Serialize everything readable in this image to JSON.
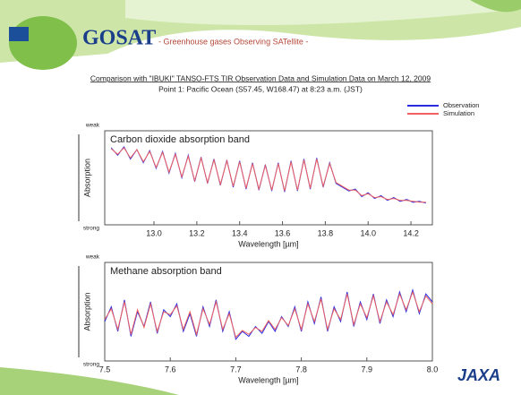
{
  "header": {
    "logo": "GOSAT",
    "tagline": "- Greenhouse gases Observing SATellite -",
    "title": "Comparison with \"IBUKI\" TANSO-FTS TIR Observation Data and Simulation Data on March 12, 2009",
    "subtitle": "Point 1: Pacific Ocean (S57.45, W168.47) at 8:23 a.m. (JST)"
  },
  "footer": {
    "logo": "JAXA"
  },
  "chart_data": [
    {
      "type": "line",
      "annotation": "Carbon dioxide absorption band",
      "x_label": "Wavelength [µm]",
      "y_label": "Absorption",
      "xlim": [
        12.77,
        14.3
      ],
      "xticks": [
        {
          "value": 13,
          "label": "13.0"
        },
        13.2,
        13.4,
        13.6,
        13.8,
        {
          "value": 14,
          "label": "14.0"
        },
        14.2
      ],
      "ylim": [
        0,
        1
      ],
      "yticks": [
        {
          "value": 0,
          "label": "strong"
        },
        {
          "value": 1,
          "label": "weak"
        }
      ],
      "x": [
        12.8,
        12.83,
        12.86,
        12.89,
        12.92,
        12.95,
        12.98,
        13.01,
        13.04,
        13.07,
        13.1,
        13.13,
        13.16,
        13.19,
        13.22,
        13.25,
        13.28,
        13.31,
        13.34,
        13.37,
        13.4,
        13.43,
        13.46,
        13.49,
        13.52,
        13.55,
        13.58,
        13.61,
        13.64,
        13.67,
        13.7,
        13.73,
        13.76,
        13.79,
        13.82,
        13.85,
        13.88,
        13.91,
        13.94,
        13.97,
        14.0,
        14.03,
        14.06,
        14.09,
        14.12,
        14.15,
        14.18,
        14.21,
        14.24,
        14.27
      ],
      "series": [
        {
          "name": "Observation",
          "color": "#2a2ae0",
          "values": [
            0.82,
            0.74,
            0.83,
            0.7,
            0.8,
            0.66,
            0.79,
            0.6,
            0.78,
            0.55,
            0.76,
            0.5,
            0.74,
            0.46,
            0.72,
            0.44,
            0.7,
            0.42,
            0.69,
            0.4,
            0.68,
            0.38,
            0.66,
            0.37,
            0.64,
            0.36,
            0.66,
            0.35,
            0.68,
            0.36,
            0.7,
            0.38,
            0.71,
            0.4,
            0.66,
            0.44,
            0.4,
            0.36,
            0.38,
            0.3,
            0.34,
            0.28,
            0.31,
            0.26,
            0.29,
            0.25,
            0.27,
            0.24,
            0.25,
            0.23
          ]
        },
        {
          "name": "Simulation",
          "color": "#f06060",
          "values": [
            0.81,
            0.75,
            0.82,
            0.71,
            0.8,
            0.67,
            0.78,
            0.61,
            0.77,
            0.56,
            0.75,
            0.51,
            0.73,
            0.47,
            0.71,
            0.45,
            0.69,
            0.43,
            0.68,
            0.41,
            0.67,
            0.39,
            0.65,
            0.38,
            0.63,
            0.37,
            0.65,
            0.36,
            0.67,
            0.37,
            0.69,
            0.39,
            0.7,
            0.41,
            0.65,
            0.45,
            0.41,
            0.37,
            0.37,
            0.31,
            0.33,
            0.29,
            0.3,
            0.27,
            0.28,
            0.26,
            0.26,
            0.25,
            0.24,
            0.24
          ]
        }
      ]
    },
    {
      "type": "line",
      "annotation": "Methane absorption band",
      "x_label": "Wavelength [µm]",
      "y_label": "Absorption",
      "xlim": [
        7.5,
        8.0
      ],
      "xticks": [
        7.5,
        7.6,
        7.7,
        7.8,
        7.9,
        {
          "value": 8,
          "label": "8.0"
        }
      ],
      "ylim": [
        0,
        1
      ],
      "yticks": [
        {
          "value": 0,
          "label": "strong"
        },
        {
          "value": 1,
          "label": "weak"
        }
      ],
      "x": [
        7.5,
        7.51,
        7.52,
        7.53,
        7.54,
        7.55,
        7.56,
        7.57,
        7.58,
        7.59,
        7.6,
        7.61,
        7.62,
        7.63,
        7.64,
        7.65,
        7.66,
        7.67,
        7.68,
        7.69,
        7.7,
        7.71,
        7.72,
        7.73,
        7.74,
        7.75,
        7.76,
        7.77,
        7.78,
        7.79,
        7.8,
        7.81,
        7.82,
        7.83,
        7.84,
        7.85,
        7.86,
        7.87,
        7.88,
        7.89,
        7.9,
        7.91,
        7.92,
        7.93,
        7.94,
        7.95,
        7.96,
        7.97,
        7.98,
        7.99,
        8.0
      ],
      "series": [
        {
          "color": "#2a2ae0",
          "values": [
            0.4,
            0.55,
            0.3,
            0.62,
            0.25,
            0.5,
            0.35,
            0.6,
            0.28,
            0.52,
            0.45,
            0.58,
            0.3,
            0.48,
            0.25,
            0.55,
            0.35,
            0.62,
            0.3,
            0.5,
            0.22,
            0.3,
            0.25,
            0.35,
            0.28,
            0.4,
            0.3,
            0.45,
            0.35,
            0.55,
            0.3,
            0.6,
            0.38,
            0.65,
            0.3,
            0.55,
            0.4,
            0.7,
            0.35,
            0.6,
            0.42,
            0.68,
            0.38,
            0.62,
            0.45,
            0.7,
            0.5,
            0.72,
            0.48,
            0.68,
            0.6
          ]
        },
        {
          "color": "#f06060",
          "values": [
            0.42,
            0.53,
            0.32,
            0.6,
            0.27,
            0.52,
            0.34,
            0.58,
            0.3,
            0.5,
            0.47,
            0.56,
            0.32,
            0.5,
            0.27,
            0.53,
            0.37,
            0.6,
            0.32,
            0.48,
            0.24,
            0.31,
            0.27,
            0.34,
            0.3,
            0.41,
            0.32,
            0.44,
            0.36,
            0.53,
            0.32,
            0.58,
            0.4,
            0.63,
            0.32,
            0.53,
            0.42,
            0.68,
            0.37,
            0.58,
            0.44,
            0.66,
            0.4,
            0.6,
            0.47,
            0.68,
            0.52,
            0.7,
            0.5,
            0.66,
            0.58
          ]
        }
      ]
    }
  ]
}
